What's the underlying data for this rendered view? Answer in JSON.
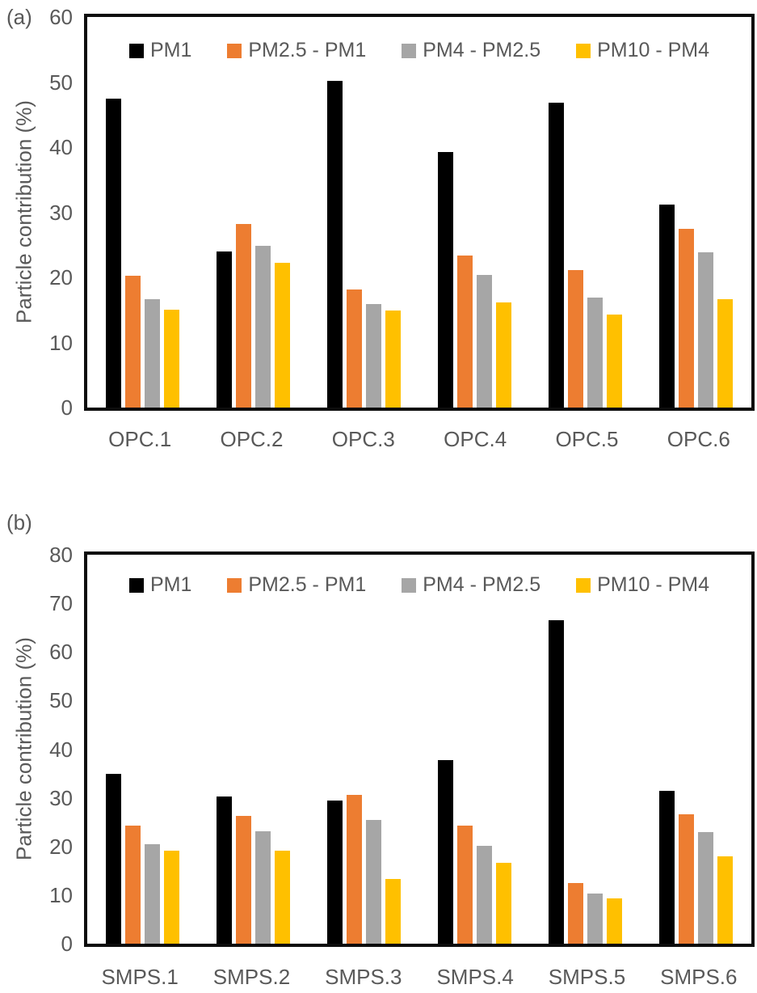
{
  "figure": {
    "panel_labels": [
      "(a)",
      "(b)"
    ],
    "colors": {
      "pm1": "#000000",
      "pm2_5_minus_pm1": "#ED7D31",
      "pm4_minus_pm2_5": "#A6A6A6",
      "pm10_minus_pm4": "#FFC000",
      "axis_text": "#595959",
      "axis_line": "#0d0d0d"
    }
  },
  "chart_data": [
    {
      "type": "bar",
      "panel_label": "(a)",
      "title": "",
      "xlabel": "",
      "ylabel": "Particle contribution (%)",
      "ylim": [
        0,
        60
      ],
      "yticks": [
        0,
        10,
        20,
        30,
        40,
        50,
        60
      ],
      "grid": false,
      "legend_position": "top-center",
      "categories": [
        "OPC.1",
        "OPC.2",
        "OPC.3",
        "OPC.4",
        "OPC.5",
        "OPC.6"
      ],
      "series": [
        {
          "name": "PM1",
          "color": "#000000",
          "values": [
            47.5,
            24.0,
            50.2,
            39.2,
            46.8,
            31.2
          ]
        },
        {
          "name": "PM2.5 - PM1",
          "color": "#ED7D31",
          "values": [
            20.3,
            28.2,
            18.2,
            23.3,
            21.1,
            27.5
          ]
        },
        {
          "name": "PM4 - PM2.5",
          "color": "#A6A6A6",
          "values": [
            16.7,
            24.8,
            15.9,
            20.4,
            16.9,
            23.8
          ]
        },
        {
          "name": "PM10 - PM4",
          "color": "#FFC000",
          "values": [
            15.0,
            22.3,
            14.9,
            16.2,
            14.3,
            16.6
          ]
        }
      ]
    },
    {
      "type": "bar",
      "panel_label": "(b)",
      "title": "",
      "xlabel": "",
      "ylabel": "Particle contribution (%)",
      "ylim": [
        0,
        80
      ],
      "yticks": [
        0,
        10,
        20,
        30,
        40,
        50,
        60,
        70,
        80
      ],
      "grid": false,
      "legend_position": "top-center",
      "categories": [
        "SMPS.1",
        "SMPS.2",
        "SMPS.3",
        "SMPS.4",
        "SMPS.5",
        "SMPS.6"
      ],
      "series": [
        {
          "name": "PM1",
          "color": "#000000",
          "values": [
            34.9,
            30.3,
            29.4,
            37.8,
            66.6,
            31.5
          ]
        },
        {
          "name": "PM2.5 - PM1",
          "color": "#ED7D31",
          "values": [
            24.3,
            26.3,
            30.6,
            24.3,
            12.4,
            26.6
          ]
        },
        {
          "name": "PM4 - PM2.5",
          "color": "#A6A6A6",
          "values": [
            20.5,
            23.2,
            25.4,
            20.2,
            10.3,
            22.9
          ]
        },
        {
          "name": "PM10 - PM4",
          "color": "#FFC000",
          "values": [
            19.1,
            19.1,
            13.3,
            16.6,
            9.4,
            18.0
          ]
        }
      ]
    }
  ]
}
